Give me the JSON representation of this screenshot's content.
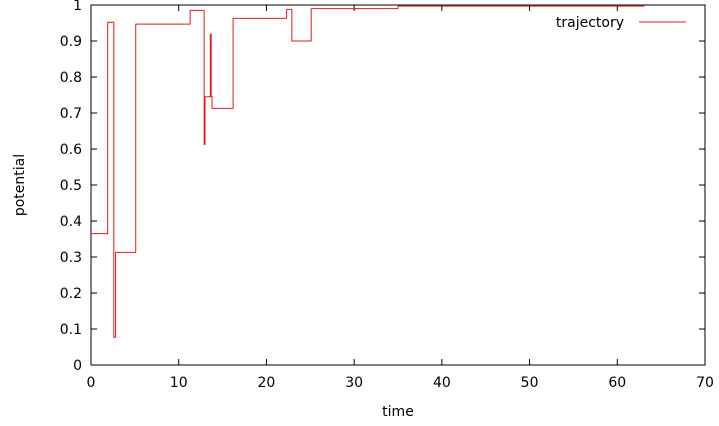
{
  "chart_data": {
    "type": "line",
    "style": "step",
    "xlabel": "time",
    "ylabel": "potential",
    "xlim": [
      0,
      70
    ],
    "ylim": [
      0,
      1
    ],
    "x_ticks": [
      "0",
      "10",
      "20",
      "30",
      "40",
      "50",
      "60",
      "70"
    ],
    "y_ticks": [
      "0",
      "0.1",
      "0.2",
      "0.3",
      "0.4",
      "0.5",
      "0.6",
      "0.7",
      "0.8",
      "0.9",
      "1"
    ],
    "grid": false,
    "legend_position": "top-right",
    "series": [
      {
        "name": "trajectory",
        "color": "#e41a1c",
        "x": [
          0,
          1.9,
          1.9,
          2.6,
          2.6,
          2.8,
          2.8,
          5.1,
          5.1,
          11.3,
          11.3,
          12.9,
          12.9,
          13.0,
          13.0,
          13.6,
          13.6,
          13.7,
          13.7,
          13.8,
          13.8,
          16.2,
          16.2,
          22.3,
          22.3,
          22.9,
          22.9,
          25.1,
          25.1,
          35.0,
          35.0,
          63.1
        ],
        "y": [
          0.365,
          0.365,
          0.952,
          0.952,
          0.077,
          0.077,
          0.313,
          0.313,
          0.947,
          0.947,
          0.985,
          0.985,
          0.613,
          0.613,
          0.745,
          0.745,
          0.919,
          0.919,
          0.745,
          0.745,
          0.713,
          0.713,
          0.963,
          0.963,
          0.988,
          0.988,
          0.9,
          0.9,
          0.99,
          0.99,
          0.997,
          0.997
        ]
      }
    ]
  }
}
